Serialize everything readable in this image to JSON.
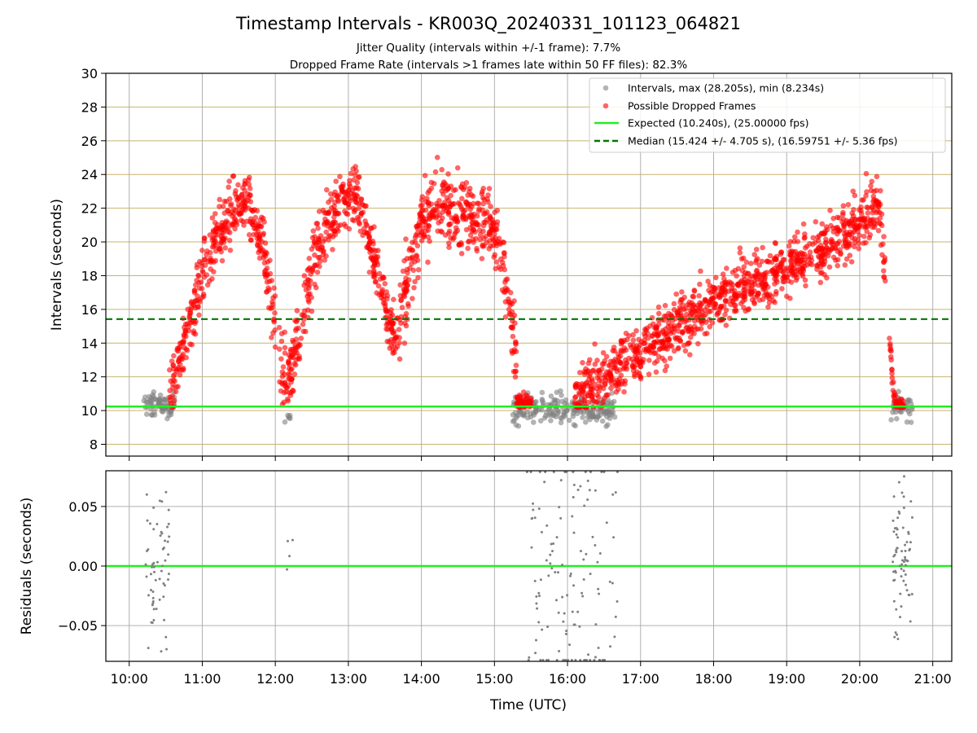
{
  "chart_data": [
    {
      "type": "scatter",
      "title": "Timestamp Intervals - KR003Q_20240331_101123_064821",
      "subtitle_lines": [
        "Jitter Quality (intervals within +/-1 frame): 7.7%",
        "Dropped Frame Rate (intervals >1 frames late within 50 FF files): 82.3%"
      ],
      "xlabel": "",
      "ylabel": "Intervals (seconds)",
      "x_unit": "hours UTC",
      "xlim": [
        9.68,
        21.26
      ],
      "ylim": [
        7.3,
        30
      ],
      "yticks": [
        8,
        10,
        12,
        14,
        16,
        18,
        20,
        22,
        24,
        26,
        28,
        30
      ],
      "ytick_labels": [
        "8",
        "10",
        "12",
        "14",
        "16",
        "18",
        "20",
        "22",
        "24",
        "26",
        "28",
        "30"
      ],
      "grid": "horizontal lines at even seconds, vertical lines at each hour",
      "legend_position": "top-right",
      "legend": [
        {
          "label": "Intervals, max (28.205s), min (8.234s)",
          "color": "#808080",
          "marker": "circle"
        },
        {
          "label": "Possible Dropped Frames",
          "color": "#ff0000",
          "marker": "circle"
        },
        {
          "label": "Expected (10.240s), (25.00000 fps)",
          "color": "#22ee22",
          "style": "solid"
        },
        {
          "label": "Median (15.424 +/- 4.705 s), (16.59751 +/- 5.36 fps)",
          "color": "#007700",
          "style": "dashed"
        }
      ],
      "reference_lines": {
        "expected": 10.24,
        "median": 15.424
      },
      "series": [
        {
          "name": "Intervals",
          "color": "#808080",
          "clusters": [
            {
              "x_range": [
                10.2,
                10.62
              ],
              "y_center": 10.3,
              "y_spread": 0.35,
              "count": 70
            },
            {
              "x_range": [
                12.1,
                12.22
              ],
              "y_center": 9.9,
              "y_spread": 0.25,
              "count": 6
            },
            {
              "x_range": [
                15.25,
                16.65
              ],
              "y_center": 10.1,
              "y_spread": 0.45,
              "count": 200
            },
            {
              "x_range": [
                20.43,
                20.72
              ],
              "y_center": 10.2,
              "y_spread": 0.35,
              "count": 40
            }
          ],
          "y_max": 28.205,
          "y_min": 8.234
        },
        {
          "name": "Possible Dropped Frames",
          "color": "#ff0000",
          "segments": [
            {
              "x": [
                10.55,
                10.75,
                11.0,
                11.3,
                11.6,
                11.8,
                12.0
              ],
              "y": [
                10.8,
                14.0,
                18.0,
                21.0,
                22.5,
                20.5,
                15.0
              ],
              "spread": 1.3
            },
            {
              "x": [
                12.05,
                12.2,
                12.4,
                12.6,
                12.9,
                13.1
              ],
              "y": [
                12.5,
                12.0,
                16.5,
                20.0,
                22.5,
                23.0
              ],
              "spread": 1.4
            },
            {
              "x": [
                13.1,
                13.35,
                13.55,
                13.7
              ],
              "y": [
                23.0,
                19.0,
                15.5,
                14.0
              ],
              "spread": 1.2
            },
            {
              "x": [
                13.7,
                14.0,
                14.3,
                14.6,
                14.9,
                15.1,
                15.3
              ],
              "y": [
                15.5,
                21.0,
                22.5,
                21.5,
                21.5,
                19.0,
                13.0
              ],
              "spread": 1.5
            },
            {
              "x": [
                15.3,
                15.5
              ],
              "y": [
                10.5,
                10.5
              ],
              "spread": 0.3
            },
            {
              "x": [
                16.1,
                16.5,
                17.0,
                17.5,
                18.0,
                18.5,
                19.0,
                19.5,
                20.0,
                20.25,
                20.35
              ],
              "y": [
                10.6,
                12.0,
                13.5,
                15.0,
                16.5,
                17.5,
                18.5,
                19.5,
                21.0,
                22.5,
                18.5
              ],
              "spread": 1.2
            },
            {
              "x": [
                20.4,
                20.45,
                20.5,
                20.6
              ],
              "y": [
                15.0,
                11.5,
                10.4,
                10.3
              ],
              "spread": 0.4
            }
          ]
        }
      ]
    },
    {
      "type": "scatter",
      "xlabel": "Time (UTC)",
      "ylabel": "Residuals (seconds)",
      "xlim": [
        9.68,
        21.26
      ],
      "ylim": [
        -0.08,
        0.08
      ],
      "yticks": [
        -0.05,
        0.0,
        0.05
      ],
      "ytick_labels": [
        "−0.05",
        "0.00",
        "0.05"
      ],
      "xticks": [
        10,
        11,
        12,
        13,
        14,
        15,
        16,
        17,
        18,
        19,
        20,
        21
      ],
      "xtick_labels": [
        "10:00",
        "11:00",
        "12:00",
        "13:00",
        "14:00",
        "15:00",
        "16:00",
        "17:00",
        "18:00",
        "19:00",
        "20:00",
        "21:00"
      ],
      "zero_line_color": "#22ee22",
      "series": [
        {
          "name": "Residuals",
          "color": "#808080",
          "clusters": [
            {
              "x_range": [
                10.2,
                10.55
              ],
              "y_spread": 0.03,
              "count": 60
            },
            {
              "x_range": [
                12.15,
                12.25
              ],
              "y_spread": 0.02,
              "count": 4
            },
            {
              "x_range": [
                15.4,
                16.7
              ],
              "y_spread": 0.07,
              "count": 130
            },
            {
              "x_range": [
                20.45,
                20.72
              ],
              "y_spread": 0.035,
              "count": 70
            }
          ]
        }
      ]
    }
  ]
}
